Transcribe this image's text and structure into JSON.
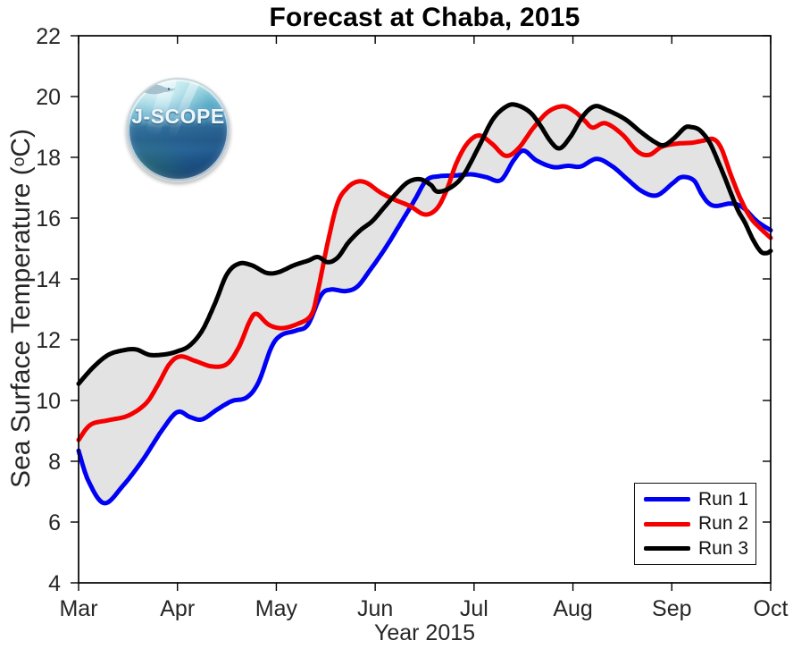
{
  "chart_data": {
    "type": "line",
    "title": "Forecast at Chaba, 2015",
    "xlabel": "Year 2015",
    "ylabel_pre": "Sea Surface Temperature (",
    "ylabel_sup": "o",
    "ylabel_post": "C)",
    "x_tick_labels": [
      "Mar",
      "Apr",
      "May",
      "Jun",
      "Jul",
      "Aug",
      "Sep",
      "Oct"
    ],
    "y_ticks": [
      4,
      6,
      8,
      10,
      12,
      14,
      16,
      18,
      20,
      22
    ],
    "xlim": [
      0,
      7
    ],
    "ylim": [
      4,
      22
    ],
    "grid": false,
    "legend_position": "lower right",
    "envelope": {
      "color": "#e3e3e3",
      "end_month": 6.78,
      "note": "shaded min-max spread of runs"
    },
    "series": [
      {
        "name": "Run 1",
        "color": "#0000f5",
        "points": [
          [
            0.0,
            8.35
          ],
          [
            0.1,
            7.35
          ],
          [
            0.26,
            6.62
          ],
          [
            0.45,
            7.2
          ],
          [
            0.65,
            8.05
          ],
          [
            0.85,
            9.05
          ],
          [
            1.0,
            9.62
          ],
          [
            1.13,
            9.45
          ],
          [
            1.25,
            9.38
          ],
          [
            1.4,
            9.7
          ],
          [
            1.55,
            9.98
          ],
          [
            1.7,
            10.1
          ],
          [
            1.82,
            10.6
          ],
          [
            1.95,
            11.75
          ],
          [
            2.05,
            12.15
          ],
          [
            2.2,
            12.3
          ],
          [
            2.32,
            12.5
          ],
          [
            2.45,
            13.45
          ],
          [
            2.55,
            13.65
          ],
          [
            2.7,
            13.6
          ],
          [
            2.82,
            13.75
          ],
          [
            2.95,
            14.3
          ],
          [
            3.1,
            15.0
          ],
          [
            3.27,
            15.9
          ],
          [
            3.4,
            16.6
          ],
          [
            3.52,
            17.25
          ],
          [
            3.65,
            17.38
          ],
          [
            3.8,
            17.4
          ],
          [
            3.97,
            17.44
          ],
          [
            4.12,
            17.35
          ],
          [
            4.27,
            17.25
          ],
          [
            4.4,
            17.9
          ],
          [
            4.5,
            18.22
          ],
          [
            4.63,
            17.9
          ],
          [
            4.8,
            17.68
          ],
          [
            4.95,
            17.72
          ],
          [
            5.08,
            17.7
          ],
          [
            5.24,
            17.95
          ],
          [
            5.4,
            17.7
          ],
          [
            5.55,
            17.28
          ],
          [
            5.7,
            16.88
          ],
          [
            5.85,
            16.75
          ],
          [
            6.01,
            17.15
          ],
          [
            6.1,
            17.35
          ],
          [
            6.22,
            17.25
          ],
          [
            6.3,
            16.8
          ],
          [
            6.37,
            16.5
          ],
          [
            6.45,
            16.4
          ],
          [
            6.6,
            16.48
          ],
          [
            6.72,
            16.35
          ],
          [
            6.86,
            15.9
          ],
          [
            7.0,
            15.6
          ]
        ]
      },
      {
        "name": "Run 2",
        "color": "#f50000",
        "points": [
          [
            0.0,
            8.7
          ],
          [
            0.12,
            9.2
          ],
          [
            0.3,
            9.35
          ],
          [
            0.5,
            9.5
          ],
          [
            0.68,
            9.9
          ],
          [
            0.8,
            10.5
          ],
          [
            0.92,
            11.2
          ],
          [
            1.03,
            11.45
          ],
          [
            1.18,
            11.3
          ],
          [
            1.35,
            11.12
          ],
          [
            1.5,
            11.2
          ],
          [
            1.62,
            11.75
          ],
          [
            1.73,
            12.6
          ],
          [
            1.8,
            12.85
          ],
          [
            1.92,
            12.5
          ],
          [
            2.05,
            12.38
          ],
          [
            2.2,
            12.5
          ],
          [
            2.35,
            12.8
          ],
          [
            2.42,
            13.6
          ],
          [
            2.52,
            15.2
          ],
          [
            2.62,
            16.5
          ],
          [
            2.72,
            17.0
          ],
          [
            2.82,
            17.2
          ],
          [
            2.92,
            17.15
          ],
          [
            3.05,
            16.85
          ],
          [
            3.2,
            16.6
          ],
          [
            3.35,
            16.4
          ],
          [
            3.5,
            16.12
          ],
          [
            3.62,
            16.3
          ],
          [
            3.72,
            16.9
          ],
          [
            3.82,
            17.8
          ],
          [
            3.93,
            18.45
          ],
          [
            4.05,
            18.72
          ],
          [
            4.18,
            18.45
          ],
          [
            4.32,
            18.05
          ],
          [
            4.45,
            18.3
          ],
          [
            4.6,
            18.97
          ],
          [
            4.75,
            19.5
          ],
          [
            4.9,
            19.68
          ],
          [
            5.02,
            19.5
          ],
          [
            5.12,
            19.2
          ],
          [
            5.2,
            18.98
          ],
          [
            5.33,
            19.12
          ],
          [
            5.5,
            18.75
          ],
          [
            5.65,
            18.2
          ],
          [
            5.77,
            18.08
          ],
          [
            5.9,
            18.35
          ],
          [
            6.05,
            18.45
          ],
          [
            6.2,
            18.48
          ],
          [
            6.32,
            18.55
          ],
          [
            6.42,
            18.6
          ],
          [
            6.5,
            18.3
          ],
          [
            6.6,
            17.4
          ],
          [
            6.7,
            16.6
          ],
          [
            6.8,
            16.0
          ],
          [
            6.9,
            15.65
          ],
          [
            7.0,
            15.35
          ]
        ]
      },
      {
        "name": "Run 3",
        "color": "#000000",
        "points": [
          [
            0.0,
            10.55
          ],
          [
            0.15,
            11.1
          ],
          [
            0.3,
            11.5
          ],
          [
            0.45,
            11.65
          ],
          [
            0.58,
            11.68
          ],
          [
            0.72,
            11.5
          ],
          [
            0.88,
            11.52
          ],
          [
            1.0,
            11.62
          ],
          [
            1.12,
            11.8
          ],
          [
            1.25,
            12.3
          ],
          [
            1.38,
            13.2
          ],
          [
            1.5,
            14.15
          ],
          [
            1.62,
            14.5
          ],
          [
            1.75,
            14.45
          ],
          [
            1.9,
            14.2
          ],
          [
            2.02,
            14.22
          ],
          [
            2.18,
            14.45
          ],
          [
            2.32,
            14.6
          ],
          [
            2.42,
            14.72
          ],
          [
            2.52,
            14.55
          ],
          [
            2.62,
            14.7
          ],
          [
            2.73,
            15.2
          ],
          [
            2.85,
            15.6
          ],
          [
            2.97,
            15.9
          ],
          [
            3.09,
            16.35
          ],
          [
            3.21,
            16.8
          ],
          [
            3.33,
            17.18
          ],
          [
            3.45,
            17.28
          ],
          [
            3.56,
            17.1
          ],
          [
            3.63,
            16.87
          ],
          [
            3.76,
            17.0
          ],
          [
            3.89,
            17.4
          ],
          [
            4.04,
            18.3
          ],
          [
            4.19,
            19.25
          ],
          [
            4.33,
            19.68
          ],
          [
            4.43,
            19.72
          ],
          [
            4.56,
            19.5
          ],
          [
            4.66,
            19.1
          ],
          [
            4.78,
            18.5
          ],
          [
            4.87,
            18.3
          ],
          [
            4.98,
            18.7
          ],
          [
            5.1,
            19.35
          ],
          [
            5.22,
            19.68
          ],
          [
            5.35,
            19.55
          ],
          [
            5.53,
            19.25
          ],
          [
            5.68,
            18.85
          ],
          [
            5.83,
            18.5
          ],
          [
            5.92,
            18.4
          ],
          [
            6.02,
            18.62
          ],
          [
            6.13,
            18.97
          ],
          [
            6.19,
            19.0
          ],
          [
            6.28,
            18.9
          ],
          [
            6.38,
            18.5
          ],
          [
            6.47,
            17.85
          ],
          [
            6.54,
            17.3
          ],
          [
            6.6,
            16.8
          ],
          [
            6.67,
            16.25
          ],
          [
            6.74,
            15.85
          ],
          [
            6.82,
            15.3
          ],
          [
            6.9,
            14.9
          ],
          [
            6.96,
            14.85
          ],
          [
            7.0,
            14.92
          ]
        ]
      }
    ]
  },
  "logo": {
    "text": "J-SCOPE"
  },
  "style": {
    "axis_color": "#000000",
    "tick_label_color": "#262626",
    "frame_width": 1.7,
    "line_width": 5
  }
}
